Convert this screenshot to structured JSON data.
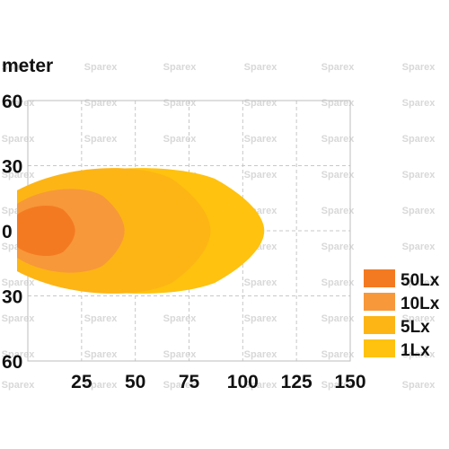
{
  "chart_data": {
    "type": "area",
    "ylabel": "meter",
    "x_ticks": [
      25,
      50,
      75,
      100,
      125,
      150
    ],
    "y_ticks": [
      {
        "value": 60,
        "label": "60"
      },
      {
        "value": 30,
        "label": "30"
      },
      {
        "value": 0,
        "label": "0"
      },
      {
        "value": -30,
        "label": "30"
      },
      {
        "value": -60,
        "label": "60"
      }
    ],
    "xlim": [
      0,
      150
    ],
    "ylim": [
      -60,
      60
    ],
    "grid": true,
    "legend_position": "bottom-right",
    "series": [
      {
        "name": "1Lx",
        "color": "#ffc20e",
        "max_distance": 110,
        "max_half_width": 30
      },
      {
        "name": "5Lx",
        "color": "#fdb515",
        "max_distance": 85,
        "max_half_width": 30
      },
      {
        "name": "10Lx",
        "color": "#f7983a",
        "max_distance": 45,
        "max_half_width": 20
      },
      {
        "name": "50Lx",
        "color": "#f47a22",
        "max_distance": 22,
        "max_half_width": 12
      }
    ],
    "watermark": "Sparex"
  }
}
